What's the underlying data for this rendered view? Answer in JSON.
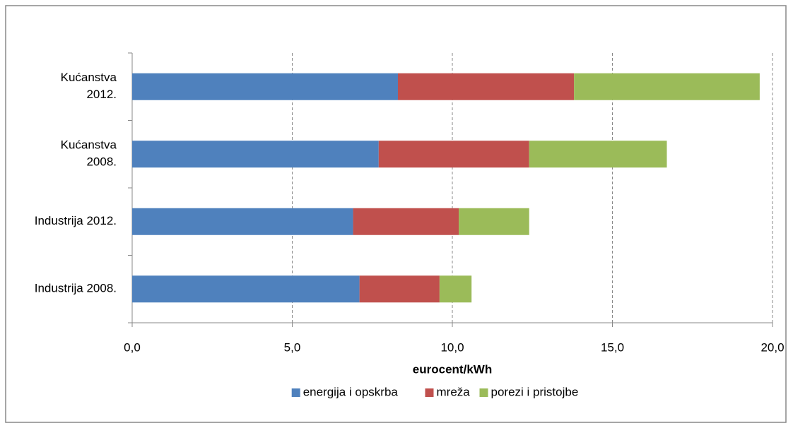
{
  "chart_data": {
    "type": "barh_stacked",
    "categories": [
      "Kućanstva\n2012.",
      "Kućanstva\n2008.",
      "Industrija 2012.",
      "Industrija 2008."
    ],
    "series": [
      {
        "name": "energija i opskrba",
        "color": "#4f81bd",
        "values": [
          8.3,
          7.7,
          6.9,
          7.1
        ]
      },
      {
        "name": "mreža",
        "color": "#c0504d",
        "values": [
          5.5,
          4.7,
          3.3,
          2.5
        ]
      },
      {
        "name": "porezi i pristojbe",
        "color": "#9bbb59",
        "values": [
          5.8,
          4.3,
          2.2,
          1.0
        ]
      }
    ],
    "xlabel": "eurocent/kWh",
    "xlim": [
      0,
      20
    ],
    "xticks": [
      {
        "value": 0,
        "label": "0,0"
      },
      {
        "value": 5,
        "label": "5,0"
      },
      {
        "value": 10,
        "label": "10,0"
      },
      {
        "value": 15,
        "label": "15,0"
      },
      {
        "value": 20,
        "label": "20,0"
      }
    ],
    "grid": true,
    "legend": "bottom"
  }
}
